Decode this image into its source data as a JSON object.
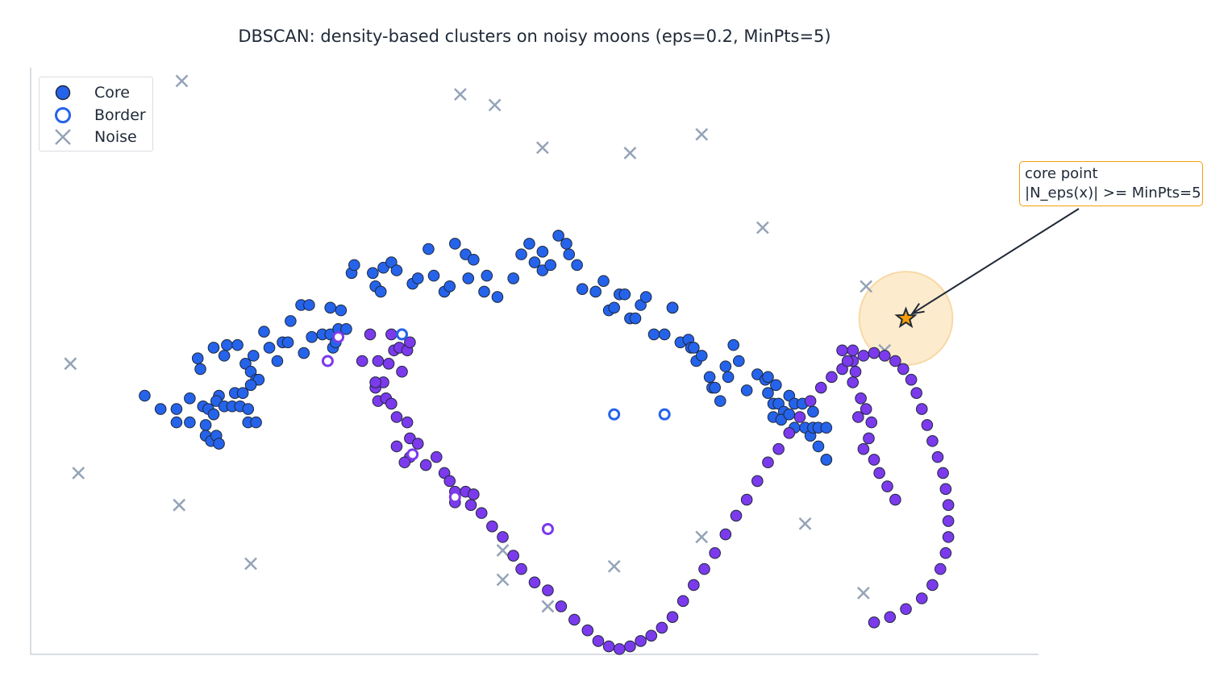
{
  "chart_data": {
    "type": "scatter",
    "title": "DBSCAN: density-based clusters on noisy moons (eps=0.2, MinPts=5)",
    "xlabel": "",
    "ylabel": "",
    "xlim": [
      -1.4,
      2.4
    ],
    "ylim": [
      -0.9,
      1.3
    ],
    "axes_visible": [
      "left",
      "bottom"
    ],
    "ticks_visible": false,
    "grid": false,
    "legend": {
      "placement": "top-left",
      "entries": [
        {
          "label": "Core",
          "marker": "filled-circle"
        },
        {
          "label": "Border",
          "marker": "hollow-circle"
        },
        {
          "label": "Noise",
          "marker": "x"
        }
      ]
    },
    "colors": {
      "cluster_0": "#2563eb",
      "cluster_1": "#7c3aed",
      "noise": "#94a3b8",
      "highlight": "#f59e0b",
      "eps_circle": "#fde8c4",
      "edge": "#1f2937"
    },
    "eps": 0.2,
    "min_pts": 5,
    "cluster_0_core": [
      [
        -0.97,
        0.07
      ],
      [
        -0.91,
        0.02
      ],
      [
        -0.85,
        0.02
      ],
      [
        -0.8,
        0.06
      ],
      [
        -0.75,
        0.03
      ],
      [
        -0.73,
        0.02
      ],
      [
        -0.71,
        0.0
      ],
      [
        -0.69,
        0.07
      ],
      [
        -0.7,
        0.05
      ],
      [
        -0.67,
        0.03
      ],
      [
        -0.64,
        0.03
      ],
      [
        -0.63,
        0.08
      ],
      [
        -0.61,
        0.03
      ],
      [
        -0.6,
        0.08
      ],
      [
        -0.58,
        0.02
      ],
      [
        -0.58,
        -0.03
      ],
      [
        -0.55,
        -0.03
      ],
      [
        -0.85,
        -0.03
      ],
      [
        -0.8,
        -0.03
      ],
      [
        -0.74,
        -0.04
      ],
      [
        -0.74,
        -0.08
      ],
      [
        -0.72,
        -0.1
      ],
      [
        -0.7,
        -0.08
      ],
      [
        -0.69,
        -0.11
      ],
      [
        -0.77,
        0.21
      ],
      [
        -0.76,
        0.17
      ],
      [
        -0.71,
        0.25
      ],
      [
        -0.67,
        0.22
      ],
      [
        -0.66,
        0.26
      ],
      [
        -0.62,
        0.26
      ],
      [
        -0.59,
        0.19
      ],
      [
        -0.57,
        0.16
      ],
      [
        -0.56,
        0.22
      ],
      [
        -0.55,
        0.13
      ],
      [
        -0.54,
        0.13
      ],
      [
        -0.57,
        0.11
      ],
      [
        -0.52,
        0.31
      ],
      [
        -0.5,
        0.25
      ],
      [
        -0.47,
        0.2
      ],
      [
        -0.45,
        0.27
      ],
      [
        -0.43,
        0.27
      ],
      [
        -0.42,
        0.35
      ],
      [
        -0.38,
        0.41
      ],
      [
        -0.35,
        0.41
      ],
      [
        -0.37,
        0.23
      ],
      [
        -0.34,
        0.29
      ],
      [
        -0.3,
        0.3
      ],
      [
        -0.26,
        0.25
      ],
      [
        -0.27,
        0.3
      ],
      [
        -0.24,
        0.32
      ],
      [
        -0.25,
        0.27
      ],
      [
        -0.21,
        0.32
      ],
      [
        -0.23,
        0.39
      ],
      [
        -0.27,
        0.4
      ],
      [
        -0.19,
        0.53
      ],
      [
        -0.18,
        0.56
      ],
      [
        -0.11,
        0.53
      ],
      [
        -0.1,
        0.48
      ],
      [
        -0.08,
        0.46
      ],
      [
        -0.07,
        0.55
      ],
      [
        -0.04,
        0.57
      ],
      [
        -0.02,
        0.54
      ],
      [
        0.04,
        0.49
      ],
      [
        0.06,
        0.51
      ],
      [
        0.1,
        0.62
      ],
      [
        0.12,
        0.52
      ],
      [
        0.16,
        0.46
      ],
      [
        0.18,
        0.48
      ],
      [
        0.2,
        0.64
      ],
      [
        0.24,
        0.6
      ],
      [
        0.25,
        0.51
      ],
      [
        0.27,
        0.58
      ],
      [
        0.31,
        0.46
      ],
      [
        0.32,
        0.52
      ],
      [
        0.36,
        0.44
      ],
      [
        0.42,
        0.51
      ],
      [
        0.45,
        0.6
      ],
      [
        0.48,
        0.64
      ],
      [
        0.5,
        0.57
      ],
      [
        0.53,
        0.54
      ],
      [
        0.53,
        0.61
      ],
      [
        0.56,
        0.56
      ],
      [
        0.59,
        0.67
      ],
      [
        0.62,
        0.64
      ],
      [
        0.63,
        0.6
      ],
      [
        0.66,
        0.56
      ],
      [
        0.68,
        0.47
      ],
      [
        0.73,
        0.46
      ],
      [
        0.76,
        0.5
      ],
      [
        0.78,
        0.39
      ],
      [
        0.8,
        0.4
      ],
      [
        0.82,
        0.45
      ],
      [
        0.84,
        0.45
      ],
      [
        0.86,
        0.36
      ],
      [
        0.88,
        0.36
      ],
      [
        0.9,
        0.41
      ],
      [
        0.92,
        0.44
      ],
      [
        0.95,
        0.3
      ],
      [
        0.99,
        0.3
      ],
      [
        1.02,
        0.4
      ],
      [
        1.02,
        0.4
      ],
      [
        1.05,
        0.27
      ],
      [
        1.08,
        0.28
      ],
      [
        1.09,
        0.25
      ],
      [
        1.1,
        0.25
      ],
      [
        1.11,
        0.2
      ],
      [
        1.13,
        0.22
      ],
      [
        1.16,
        0.14
      ],
      [
        1.17,
        0.1
      ],
      [
        1.18,
        0.1
      ],
      [
        1.2,
        0.05
      ],
      [
        1.22,
        0.18
      ],
      [
        1.23,
        0.14
      ],
      [
        1.25,
        0.26
      ],
      [
        1.27,
        0.2
      ],
      [
        1.3,
        0.09
      ],
      [
        1.34,
        0.15
      ],
      [
        1.37,
        0.13
      ],
      [
        1.38,
        0.14
      ],
      [
        1.41,
        0.11
      ],
      [
        1.38,
        0.08
      ],
      [
        1.4,
        0.04
      ],
      [
        1.42,
        0.04
      ],
      [
        1.44,
        0.01
      ],
      [
        1.46,
        0.07
      ],
      [
        1.48,
        0.04
      ],
      [
        1.51,
        0.04
      ],
      [
        1.4,
        -0.01
      ],
      [
        1.43,
        -0.02
      ],
      [
        1.46,
        0.0
      ],
      [
        1.48,
        -0.05
      ],
      [
        1.52,
        -0.05
      ],
      [
        1.55,
        0.01
      ],
      [
        1.54,
        -0.08
      ],
      [
        1.55,
        -0.05
      ],
      [
        1.57,
        -0.12
      ],
      [
        1.6,
        -0.17
      ],
      [
        1.6,
        -0.17
      ],
      [
        1.57,
        -0.05
      ],
      [
        1.6,
        -0.05
      ]
    ],
    "cluster_0_border": [
      [
        0.0,
        0.3
      ],
      [
        0.8,
        0.0
      ],
      [
        0.99,
        0.0
      ]
    ],
    "cluster_1_core": [
      [
        -0.12,
        0.3
      ],
      [
        -0.15,
        0.2
      ],
      [
        -0.1,
        0.1
      ],
      [
        -0.09,
        0.05
      ],
      [
        -0.06,
        0.06
      ],
      [
        -0.04,
        0.04
      ],
      [
        -0.02,
        -0.01
      ],
      [
        0.02,
        -0.03
      ],
      [
        -0.02,
        -0.12
      ],
      [
        0.03,
        -0.09
      ],
      [
        0.06,
        -0.11
      ],
      [
        0.03,
        -0.16
      ],
      [
        0.01,
        -0.18
      ],
      [
        -0.07,
        0.12
      ],
      [
        -0.05,
        0.19
      ],
      [
        -0.03,
        0.24
      ],
      [
        -0.04,
        0.3
      ],
      [
        0.0,
        0.16
      ],
      [
        -0.09,
        0.2
      ],
      [
        -0.01,
        0.25
      ],
      [
        0.02,
        0.24
      ],
      [
        0.03,
        0.27
      ],
      [
        -0.1,
        0.12
      ],
      [
        0.09,
        -0.19
      ],
      [
        0.13,
        -0.16
      ],
      [
        0.16,
        -0.22
      ],
      [
        0.18,
        -0.25
      ],
      [
        0.2,
        -0.29
      ],
      [
        0.24,
        -0.29
      ],
      [
        0.27,
        -0.3
      ],
      [
        0.2,
        -0.33
      ],
      [
        0.26,
        -0.34
      ],
      [
        0.3,
        -0.37
      ],
      [
        0.34,
        -0.42
      ],
      [
        0.38,
        -0.46
      ],
      [
        0.42,
        -0.53
      ],
      [
        0.45,
        -0.58
      ],
      [
        0.5,
        -0.63
      ],
      [
        0.55,
        -0.66
      ],
      [
        0.6,
        -0.72
      ],
      [
        0.65,
        -0.77
      ],
      [
        0.7,
        -0.81
      ],
      [
        0.74,
        -0.85
      ],
      [
        0.78,
        -0.87
      ],
      [
        0.82,
        -0.88
      ],
      [
        0.86,
        -0.87
      ],
      [
        0.9,
        -0.85
      ],
      [
        0.94,
        -0.83
      ],
      [
        0.98,
        -0.8
      ],
      [
        1.02,
        -0.76
      ],
      [
        1.06,
        -0.7
      ],
      [
        1.1,
        -0.64
      ],
      [
        1.14,
        -0.58
      ],
      [
        1.18,
        -0.52
      ],
      [
        1.22,
        -0.45
      ],
      [
        1.26,
        -0.38
      ],
      [
        1.3,
        -0.32
      ],
      [
        1.34,
        -0.25
      ],
      [
        1.38,
        -0.18
      ],
      [
        1.42,
        -0.13
      ],
      [
        1.46,
        -0.07
      ],
      [
        1.5,
        -0.01
      ],
      [
        1.54,
        0.05
      ],
      [
        1.58,
        0.1
      ],
      [
        1.62,
        0.14
      ],
      [
        1.66,
        0.17
      ],
      [
        1.7,
        0.2
      ],
      [
        1.74,
        0.22
      ],
      [
        1.78,
        0.23
      ],
      [
        1.82,
        0.22
      ],
      [
        1.86,
        0.2
      ],
      [
        1.89,
        0.17
      ],
      [
        1.92,
        0.13
      ],
      [
        1.94,
        0.08
      ],
      [
        1.96,
        0.02
      ],
      [
        1.98,
        -0.04
      ],
      [
        2.0,
        -0.1
      ],
      [
        2.02,
        -0.16
      ],
      [
        2.04,
        -0.22
      ],
      [
        2.05,
        -0.28
      ],
      [
        2.06,
        -0.34
      ],
      [
        2.06,
        -0.4
      ],
      [
        2.06,
        -0.46
      ],
      [
        2.05,
        -0.52
      ],
      [
        2.03,
        -0.58
      ],
      [
        2.0,
        -0.64
      ],
      [
        1.96,
        -0.69
      ],
      [
        1.9,
        -0.73
      ],
      [
        1.84,
        -0.76
      ],
      [
        1.78,
        -0.78
      ],
      [
        1.71,
        0.16
      ],
      [
        1.7,
        0.12
      ],
      [
        1.73,
        0.06
      ],
      [
        1.75,
        0.02
      ],
      [
        1.77,
        -0.03
      ],
      [
        1.72,
        -0.01
      ],
      [
        1.76,
        -0.09
      ],
      [
        1.74,
        -0.13
      ],
      [
        1.78,
        -0.17
      ],
      [
        1.8,
        -0.22
      ],
      [
        1.83,
        -0.27
      ],
      [
        1.86,
        -0.32
      ],
      [
        1.7,
        0.24
      ],
      [
        1.68,
        0.2
      ],
      [
        1.66,
        0.24
      ]
    ],
    "cluster_1_border": [
      [
        -0.24,
        0.29
      ],
      [
        -0.28,
        0.2
      ],
      [
        0.04,
        -0.15
      ],
      [
        0.2,
        -0.31
      ],
      [
        0.55,
        -0.43
      ]
    ],
    "noise": [
      [
        -0.83,
        1.25
      ],
      [
        0.22,
        1.2
      ],
      [
        0.35,
        1.16
      ],
      [
        0.53,
        1.0
      ],
      [
        0.86,
        0.98
      ],
      [
        1.13,
        1.05
      ],
      [
        1.36,
        0.7
      ],
      [
        1.75,
        0.48
      ],
      [
        1.82,
        0.24
      ],
      [
        -1.25,
        0.19
      ],
      [
        -1.22,
        -0.22
      ],
      [
        -0.84,
        -0.34
      ],
      [
        -0.57,
        -0.56
      ],
      [
        0.38,
        -0.51
      ],
      [
        0.38,
        -0.62
      ],
      [
        1.13,
        -0.46
      ],
      [
        1.52,
        -0.41
      ],
      [
        1.74,
        -0.67
      ],
      [
        0.8,
        -0.57
      ],
      [
        0.55,
        -0.72
      ]
    ],
    "highlighted_point": {
      "label": "core point",
      "xy": [
        1.9,
        0.36
      ],
      "class": "core"
    },
    "annotation": {
      "line1": "core point",
      "line2": "|N_eps(x)| >= MinPts=5",
      "placement": "right"
    }
  }
}
